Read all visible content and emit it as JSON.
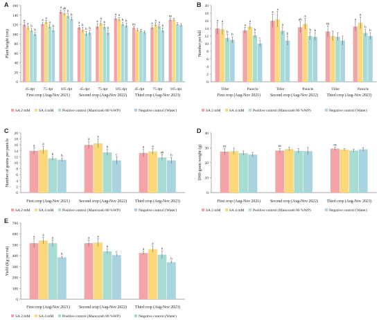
{
  "colors": {
    "sa2": "#f4a3a6",
    "sa4": "#fbd97a",
    "positive": "#a7dcd2",
    "negative": "#a9d3df",
    "error": "#555555",
    "axis": "#888888"
  },
  "legend": [
    "SA 2 mM",
    "SA 4 mM",
    "Positive control (Mancozeb 80 %WP)",
    "Negative control (Water)"
  ],
  "chart_data": [
    {
      "panel": "A",
      "type": "bar",
      "ylabel": "Plant height (cm)",
      "ylim": [
        0,
        160
      ],
      "yticks": [
        0,
        20,
        40,
        60,
        80,
        100,
        120,
        140,
        160
      ],
      "groups": [
        {
          "name": "First crop (Aug-Nov 2021)",
          "subcats": [
            "45 dpt",
            "75 dpt",
            "105 dpt"
          ]
        },
        {
          "name": "Second crop (Aug-Nov 2022)",
          "subcats": [
            "45 dpt",
            "75 dpt",
            "105 dpt"
          ]
        },
        {
          "name": "Third crop (Aug-Nov 2023)",
          "subcats": [
            "45 dpt",
            "75 dpt",
            "105 dpt"
          ]
        }
      ],
      "series": [
        {
          "name": "SA 2 mM",
          "values": [
            120,
            121,
            147,
            114,
            116,
            133,
            113,
            114,
            130
          ]
        },
        {
          "name": "SA 4 mM",
          "values": [
            113,
            125,
            144,
            109,
            123,
            131,
            109,
            120,
            130
          ]
        },
        {
          "name": "Positive control (Mancozeb 80 %WP)",
          "values": [
            108,
            116,
            138,
            101,
            115,
            121,
            107,
            116,
            121
          ]
        },
        {
          "name": "Negative control (Water)",
          "values": [
            100,
            108,
            132,
            103,
            103,
            118,
            104,
            108,
            119
          ]
        }
      ],
      "errors": [
        [
          4,
          4,
          4,
          5,
          6,
          4,
          3,
          4,
          3
        ],
        [
          4,
          4,
          5,
          5,
          5,
          4,
          3,
          4,
          3
        ],
        [
          4,
          4,
          5,
          5,
          5,
          4,
          3,
          4,
          3
        ],
        [
          4,
          4,
          4,
          5,
          5,
          5,
          3,
          5,
          3
        ]
      ],
      "letters": [
        [
          "a",
          "a",
          "a",
          "a",
          "a",
          "a",
          "ns",
          "a",
          "ns"
        ],
        [
          "a",
          "a",
          "ab",
          "b",
          "a",
          "a",
          "",
          "a",
          ""
        ],
        [
          "b",
          "a",
          "b",
          "b",
          "b",
          "b",
          "",
          "a",
          ""
        ],
        [
          "b",
          "b",
          "b",
          "b",
          "b",
          "b",
          "",
          "b",
          ""
        ]
      ]
    },
    {
      "panel": "B",
      "type": "bar",
      "ylabel": "Number per hill",
      "ylim": [
        0,
        20
      ],
      "yticks": [
        0,
        2,
        4,
        6,
        8,
        10,
        12,
        14,
        16,
        18,
        20
      ],
      "groups": [
        {
          "name": "First crop (Aug-Nov 2021)",
          "subcats": [
            "Tiller",
            "Panicle"
          ]
        },
        {
          "name": "Second crop (Aug-Nov 2022)",
          "subcats": [
            "Tiller",
            "Panicle"
          ]
        },
        {
          "name": "Third crop (Aug-Nov 2023)",
          "subcats": [
            "Tiller",
            "Panicle"
          ]
        }
      ],
      "series": [
        {
          "name": "SA 2 mM",
          "values": [
            14.0,
            13.5,
            16.0,
            14.3,
            13.2,
            14.5
          ]
        },
        {
          "name": "SA 4 mM",
          "values": [
            13.8,
            14.5,
            16.4,
            15.2,
            12.0,
            15.5
          ]
        },
        {
          "name": "Positive control (Mancozeb 80 %WP)",
          "values": [
            11.5,
            12.2,
            13.4,
            12.0,
            11.8,
            12.8
          ]
        },
        {
          "name": "Negative control (Water)",
          "values": [
            11.0,
            10.0,
            10.8,
            11.8,
            10.8,
            12.0
          ]
        }
      ],
      "errors": [
        [
          1.5,
          0.8,
          1.7,
          1.4,
          1.4,
          1.2
        ],
        [
          1.5,
          0.8,
          2.0,
          1.4,
          1.3,
          1.5
        ],
        [
          1.0,
          0.8,
          1.0,
          1.0,
          1.0,
          0.9
        ],
        [
          0.8,
          0.8,
          1.2,
          1.0,
          1.2,
          0.9
        ]
      ],
      "letters": [
        [
          "a",
          "a",
          "a",
          "ab",
          "ns",
          "a"
        ],
        [
          "a",
          "a",
          "a",
          "a",
          "",
          "a"
        ],
        [
          "b",
          "b",
          "a",
          "b",
          "",
          "b"
        ],
        [
          "b",
          "c",
          "b",
          "b",
          "",
          "b"
        ]
      ]
    },
    {
      "panel": "C",
      "type": "bar",
      "ylabel": "Number of grains per panicle",
      "ylim": [
        0,
        20
      ],
      "yticks": [
        0,
        2,
        4,
        6,
        8,
        10,
        12,
        14,
        16,
        18,
        20
      ],
      "groups": [
        {
          "name": "First crop (Aug-Nov 2021)",
          "subcats": [
            ""
          ]
        },
        {
          "name": "Second crop (Aug-Nov 2022)",
          "subcats": [
            ""
          ]
        },
        {
          "name": "Third crop (Aug-Nov 2023)",
          "subcats": [
            ""
          ]
        }
      ],
      "series": [
        {
          "name": "SA 2 mM",
          "values": [
            14.0,
            16.0,
            13.3
          ]
        },
        {
          "name": "SA 4 mM",
          "values": [
            14.3,
            16.5,
            13.8
          ]
        },
        {
          "name": "Positive control (Mancozeb 80 %WP)",
          "values": [
            11.5,
            13.5,
            11.8
          ]
        },
        {
          "name": "Negative control (Water)",
          "values": [
            11.0,
            10.8,
            10.8
          ]
        }
      ],
      "errors": [
        [
          1.0,
          1.2,
          1.2
        ],
        [
          1.3,
          1.5,
          1.0
        ],
        [
          0.6,
          1.0,
          0.9
        ],
        [
          0.6,
          1.2,
          1.0
        ]
      ],
      "letters": [
        [
          "a",
          "a",
          "a"
        ],
        [
          "a",
          "a",
          "a"
        ],
        [
          "b",
          "b",
          "ab"
        ],
        [
          "b",
          "c",
          "b"
        ]
      ]
    },
    {
      "panel": "D",
      "type": "bar",
      "ylabel": "1000-grain weight (g)",
      "ylim": [
        0,
        40
      ],
      "yticks": [
        0,
        10,
        20,
        30,
        40
      ],
      "groups": [
        {
          "name": "First crop (Aug-Nov 2021)",
          "subcats": [
            ""
          ]
        },
        {
          "name": "Second crop (Aug-Nov 2022)",
          "subcats": [
            ""
          ]
        },
        {
          "name": "Third crop (Aug-Nov 2023)",
          "subcats": [
            ""
          ]
        }
      ],
      "series": [
        {
          "name": "SA 2 mM",
          "values": [
            27.5,
            28.2,
            29.5
          ]
        },
        {
          "name": "SA 4 mM",
          "values": [
            27.8,
            29.2,
            28.8
          ]
        },
        {
          "name": "Positive control (Mancozeb 80 %WP)",
          "values": [
            26.5,
            28.0,
            28.2
          ]
        },
        {
          "name": "Negative control (Water)",
          "values": [
            25.5,
            27.8,
            29.0
          ]
        }
      ],
      "errors": [
        [
          2.0,
          1.5,
          1.0
        ],
        [
          2.0,
          1.2,
          0.8
        ],
        [
          1.5,
          1.5,
          1.0
        ],
        [
          1.5,
          2.5,
          1.2
        ]
      ],
      "letters": [
        [
          "ns",
          "ns",
          "ns"
        ],
        [
          "",
          "",
          ""
        ],
        [
          "",
          "",
          ""
        ],
        [
          "",
          "",
          ""
        ]
      ]
    },
    {
      "panel": "E",
      "type": "bar",
      "ylabel": "Yield (Kg per rai)",
      "ylim": [
        0,
        700
      ],
      "yticks": [
        0,
        100,
        200,
        300,
        400,
        500,
        600,
        700
      ],
      "groups": [
        {
          "name": "First crop (Aug-Nov 2021)",
          "subcats": [
            ""
          ]
        },
        {
          "name": "Second crop (Aug-Nov 2022)",
          "subcats": [
            ""
          ]
        },
        {
          "name": "Third crop (Aug-Nov 2023)",
          "subcats": [
            ""
          ]
        }
      ],
      "series": [
        {
          "name": "SA 2 mM",
          "values": [
            515,
            515,
            425
          ]
        },
        {
          "name": "SA 4 mM",
          "values": [
            540,
            520,
            460
          ]
        },
        {
          "name": "Positive control (Mancozeb 80 %WP)",
          "values": [
            515,
            440,
            410
          ]
        },
        {
          "name": "Negative control (Water)",
          "values": [
            385,
            405,
            340
          ]
        }
      ],
      "errors": [
        [
          40,
          30,
          15
        ],
        [
          30,
          35,
          30
        ],
        [
          30,
          20,
          35
        ],
        [
          10,
          10,
          10
        ]
      ],
      "letters": [
        [
          "a",
          "a",
          "a"
        ],
        [
          "a",
          "a",
          "a"
        ],
        [
          "a",
          "b",
          "a"
        ],
        [
          "b",
          "c",
          "b"
        ]
      ]
    }
  ]
}
